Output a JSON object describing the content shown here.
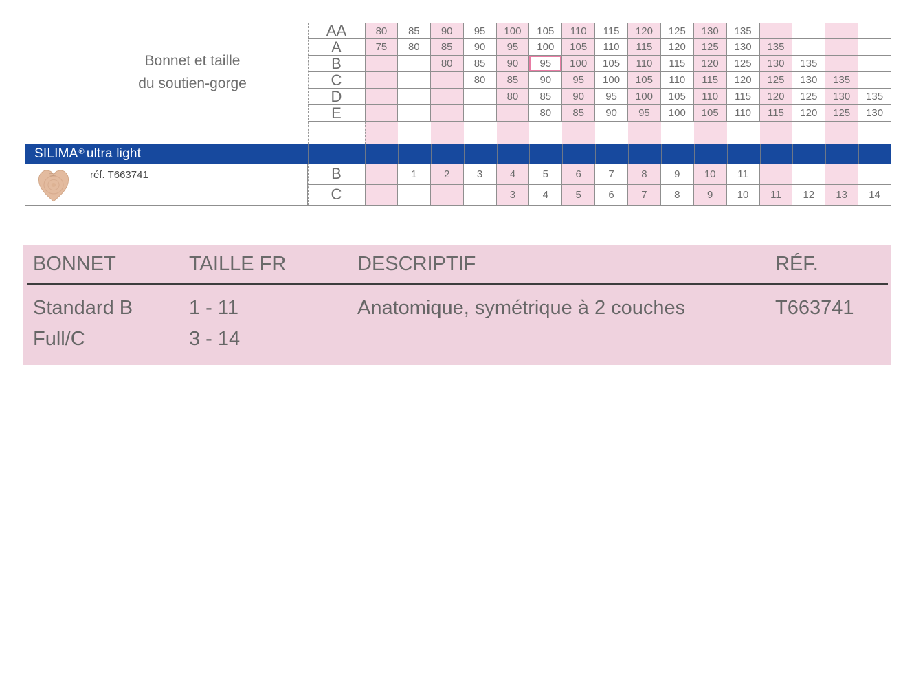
{
  "size_chart": {
    "caption_line1": "Bonnet et taille",
    "caption_line2": "du soutien-gorge",
    "columns_count": 16,
    "rows": [
      {
        "label": "AA",
        "values": [
          "80",
          "85",
          "90",
          "95",
          "100",
          "105",
          "110",
          "115",
          "120",
          "125",
          "130",
          "135",
          "",
          "",
          "",
          ""
        ]
      },
      {
        "label": "A",
        "values": [
          "75",
          "80",
          "85",
          "90",
          "95",
          "100",
          "105",
          "110",
          "115",
          "120",
          "125",
          "130",
          "135",
          "",
          "",
          ""
        ]
      },
      {
        "label": "B",
        "values": [
          "",
          "",
          "80",
          "85",
          "90",
          "95",
          "100",
          "105",
          "110",
          "115",
          "120",
          "125",
          "130",
          "135",
          "",
          ""
        ]
      },
      {
        "label": "C",
        "values": [
          "",
          "",
          "",
          "80",
          "85",
          "90",
          "95",
          "100",
          "105",
          "110",
          "115",
          "120",
          "125",
          "130",
          "135",
          ""
        ]
      },
      {
        "label": "D",
        "values": [
          "",
          "",
          "",
          "",
          "80",
          "85",
          "90",
          "95",
          "100",
          "105",
          "110",
          "115",
          "120",
          "125",
          "130",
          "135"
        ]
      },
      {
        "label": "E",
        "values": [
          "",
          "",
          "",
          "",
          "",
          "80",
          "85",
          "90",
          "95",
          "100",
          "105",
          "110",
          "115",
          "120",
          "125",
          "130"
        ]
      }
    ],
    "highlight": {
      "row": "B",
      "value": "95",
      "row_index": 2,
      "col_index": 5
    }
  },
  "product_band": {
    "brand": "SILIMA",
    "registered_mark": "®",
    "title_rest": "ultra light",
    "ref_label": "réf. T663741",
    "image": "breast-prosthesis-photo",
    "rows": [
      {
        "label": "B",
        "values": [
          "",
          "1",
          "2",
          "3",
          "4",
          "5",
          "6",
          "7",
          "8",
          "9",
          "10",
          "11",
          "",
          "",
          "",
          ""
        ]
      },
      {
        "label": "C",
        "values": [
          "",
          "",
          "",
          "",
          "3",
          "4",
          "5",
          "6",
          "7",
          "8",
          "9",
          "10",
          "11",
          "12",
          "13",
          "14"
        ]
      }
    ]
  },
  "summary_table": {
    "headers": [
      "BONNET",
      "TAILLE FR",
      "DESCRIPTIF",
      "RÉF."
    ],
    "rows": [
      [
        "Standard B",
        "1 - 11",
        "Anatomique, symétrique à 2 couches",
        "T663741"
      ],
      [
        "Full/C",
        "3 - 14",
        "",
        ""
      ]
    ]
  },
  "colors": {
    "stripe_pink": "#f8dbe6",
    "panel_pink": "#efd2de",
    "brand_blue": "#17499e",
    "text_gray": "#6d6d6d",
    "grid_border": "#8f8f8f",
    "highlight_border": "#e87ca4",
    "header_underline": "#3d3d3d"
  }
}
